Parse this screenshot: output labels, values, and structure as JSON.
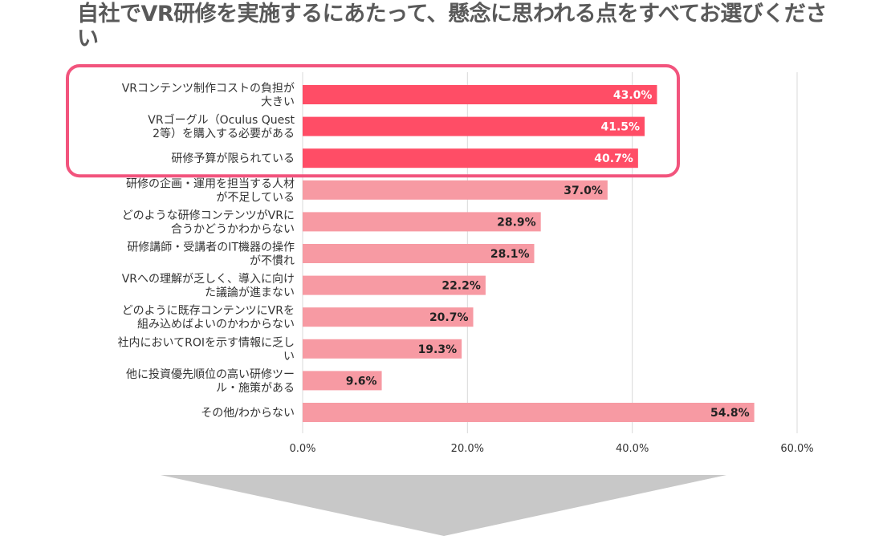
{
  "chart_data": {
    "type": "bar",
    "orientation": "horizontal",
    "title": "自社でVR研修を実施するにあたって、懸念に思われる点をすべてお選びください",
    "categories": [
      [
        "VRコンテンツ制作コストの負担が",
        "大きい"
      ],
      [
        "VRゴーグル（Oculus Quest",
        "2等）を購入する必要がある"
      ],
      [
        "研修予算が限られている"
      ],
      [
        "研修の企画・運用を担当する人材",
        "が不足している"
      ],
      [
        "どのような研修コンテンツがVRに",
        "合うかどうかわからない"
      ],
      [
        "研修講師・受講者のIT機器の操作",
        "が不慣れ"
      ],
      [
        "VRへの理解が乏しく、導入に向け",
        "た議論が進まない"
      ],
      [
        "どのように既存コンテンツにVRを",
        "組み込めばよいのかわからない"
      ],
      [
        "社内においてROIを示す情報に乏し",
        "い"
      ],
      [
        "他に投資優先順位の高い研修ツー",
        "ル・施策がある"
      ],
      [
        "その他/わからない"
      ]
    ],
    "values": [
      43.0,
      41.5,
      40.7,
      37.0,
      28.9,
      28.1,
      22.2,
      20.7,
      19.3,
      9.6,
      54.8
    ],
    "value_labels": [
      "43.0%",
      "41.5%",
      "40.7%",
      "37.0%",
      "28.9%",
      "28.1%",
      "22.2%",
      "20.7%",
      "19.3%",
      "9.6%",
      "54.8%"
    ],
    "highlighted_count": 3,
    "xlim": [
      0,
      60
    ],
    "x_ticks": [
      0,
      20,
      40,
      60
    ],
    "x_tick_labels": [
      "0.0%",
      "20.0%",
      "40.0%",
      "60.0%"
    ],
    "grid": true,
    "colors": {
      "highlight_bar": "#FF4D66",
      "normal_bar": "#F79AA3",
      "highlight_frame": "#F2547D",
      "highlight_value_text": "#FFFFFF",
      "normal_value_text": "#222222",
      "arrow": "#C8C8C8",
      "grid": "#D9D9D9"
    }
  }
}
